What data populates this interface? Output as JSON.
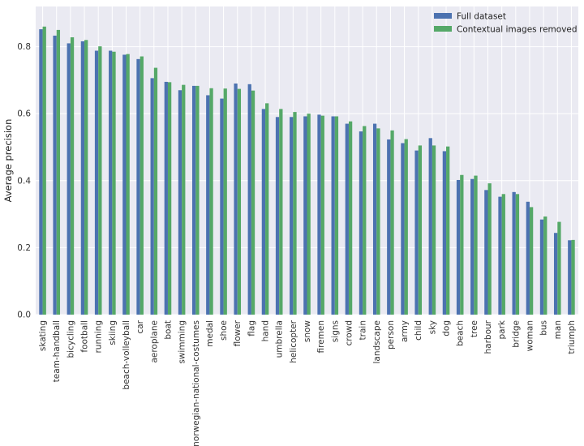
{
  "chart_data": {
    "type": "bar",
    "title": "",
    "xlabel": "",
    "ylabel": "Average precision",
    "ylim": [
      0,
      0.92
    ],
    "yticks": [
      0.0,
      0.2,
      0.4,
      0.6,
      0.8
    ],
    "grid": true,
    "legend_position": "top-right",
    "categories": [
      "skating",
      "team-handball",
      "bicycling",
      "football",
      "running",
      "skiing",
      "beach-volleyball",
      "car",
      "aeroplane",
      "boat",
      "swimming",
      "norwegian-national-costumes",
      "medal",
      "shoe",
      "flower",
      "flag",
      "hand",
      "umbrella",
      "helicopter",
      "snow",
      "firemen",
      "signs",
      "crowd",
      "train",
      "landscape",
      "person",
      "army",
      "child",
      "sky",
      "dog",
      "beach",
      "tree",
      "harbour",
      "park",
      "bridge",
      "woman",
      "bus",
      "man",
      "triumph"
    ],
    "series": [
      {
        "name": "Full dataset",
        "color": "#4c72b0",
        "values": [
          0.852,
          0.833,
          0.81,
          0.816,
          0.788,
          0.788,
          0.776,
          0.763,
          0.706,
          0.695,
          0.67,
          0.683,
          0.655,
          0.645,
          0.69,
          0.688,
          0.614,
          0.59,
          0.59,
          0.592,
          0.597,
          0.592,
          0.57,
          0.547,
          0.57,
          0.523,
          0.512,
          0.49,
          0.527,
          0.488,
          0.402,
          0.405,
          0.372,
          0.352,
          0.366,
          0.337,
          0.284,
          0.244,
          0.222
        ]
      },
      {
        "name": "Contextual images removed",
        "color": "#55a868",
        "values": [
          0.86,
          0.85,
          0.828,
          0.82,
          0.801,
          0.785,
          0.778,
          0.771,
          0.737,
          0.694,
          0.686,
          0.683,
          0.676,
          0.675,
          0.674,
          0.669,
          0.631,
          0.614,
          0.605,
          0.6,
          0.594,
          0.592,
          0.577,
          0.563,
          0.556,
          0.55,
          0.524,
          0.505,
          0.505,
          0.502,
          0.417,
          0.415,
          0.392,
          0.36,
          0.36,
          0.321,
          0.293,
          0.277,
          0.223
        ]
      }
    ]
  }
}
